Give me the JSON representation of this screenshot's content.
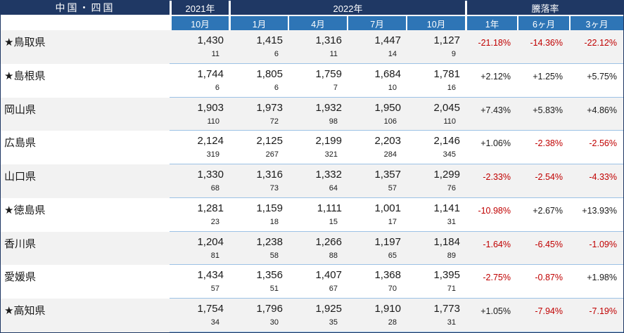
{
  "chart_data": {
    "type": "table",
    "title": "中国・四国",
    "header": {
      "region_label": "中国・四国",
      "year_2021": "2021年",
      "year_2022": "2022年",
      "change_label": "騰落率",
      "month_cols": [
        "10月",
        "1月",
        "4月",
        "7月",
        "10月"
      ],
      "change_cols": [
        "1年",
        "6ヶ月",
        "3ヶ月"
      ]
    },
    "rows": [
      {
        "name": "★鳥取県",
        "prices": [
          "1,430",
          "1,415",
          "1,316",
          "1,447",
          "1,127"
        ],
        "counts": [
          "11",
          "6",
          "11",
          "14",
          "9"
        ],
        "changes": [
          "-21.18%",
          "-14.36%",
          "-22.12%"
        ]
      },
      {
        "name": "★島根県",
        "prices": [
          "1,744",
          "1,805",
          "1,759",
          "1,684",
          "1,781"
        ],
        "counts": [
          "6",
          "6",
          "7",
          "10",
          "16"
        ],
        "changes": [
          "+2.12%",
          "+1.25%",
          "+5.75%"
        ]
      },
      {
        "name": "岡山県",
        "prices": [
          "1,903",
          "1,973",
          "1,932",
          "1,950",
          "2,045"
        ],
        "counts": [
          "110",
          "72",
          "98",
          "106",
          "110"
        ],
        "changes": [
          "+7.43%",
          "+5.83%",
          "+4.86%"
        ]
      },
      {
        "name": "広島県",
        "prices": [
          "2,124",
          "2,125",
          "2,199",
          "2,203",
          "2,146"
        ],
        "counts": [
          "319",
          "267",
          "321",
          "284",
          "345"
        ],
        "changes": [
          "+1.06%",
          "-2.38%",
          "-2.56%"
        ]
      },
      {
        "name": "山口県",
        "prices": [
          "1,330",
          "1,316",
          "1,332",
          "1,357",
          "1,299"
        ],
        "counts": [
          "68",
          "73",
          "64",
          "57",
          "76"
        ],
        "changes": [
          "-2.33%",
          "-2.54%",
          "-4.33%"
        ]
      },
      {
        "name": "★徳島県",
        "prices": [
          "1,281",
          "1,159",
          "1,111",
          "1,001",
          "1,141"
        ],
        "counts": [
          "23",
          "18",
          "15",
          "17",
          "31"
        ],
        "changes": [
          "-10.98%",
          "+2.67%",
          "+13.93%"
        ]
      },
      {
        "name": "香川県",
        "prices": [
          "1,204",
          "1,238",
          "1,266",
          "1,197",
          "1,184"
        ],
        "counts": [
          "81",
          "58",
          "88",
          "65",
          "89"
        ],
        "changes": [
          "-1.64%",
          "-6.45%",
          "-1.09%"
        ]
      },
      {
        "name": "愛媛県",
        "prices": [
          "1,434",
          "1,356",
          "1,407",
          "1,368",
          "1,395"
        ],
        "counts": [
          "57",
          "51",
          "67",
          "70",
          "71"
        ],
        "changes": [
          "-2.75%",
          "-0.87%",
          "+1.98%"
        ]
      },
      {
        "name": "★高知県",
        "prices": [
          "1,754",
          "1,796",
          "1,925",
          "1,910",
          "1,773"
        ],
        "counts": [
          "34",
          "30",
          "35",
          "28",
          "31"
        ],
        "changes": [
          "+1.05%",
          "-7.94%",
          "-7.19%"
        ]
      }
    ]
  },
  "colors": {
    "header_navy": "#1f3864",
    "header_blue": "#2e75b6",
    "stripe_gray": "#f2f2f2",
    "row_line_blue": "#9cc2e5",
    "negative_red": "#c00000",
    "text_black": "#1a1a1a"
  }
}
